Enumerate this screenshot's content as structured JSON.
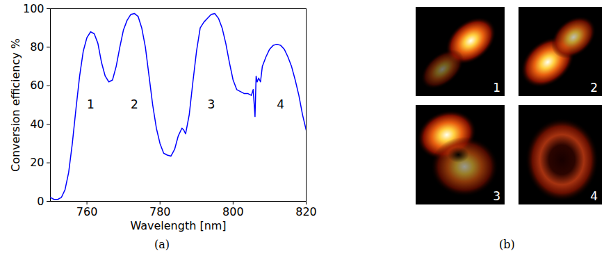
{
  "chart_data": {
    "type": "line",
    "xlabel": "Wavelength [nm]",
    "ylabel": "Conversion efficiency %",
    "color": "#0000ff",
    "xlim": [
      750,
      820
    ],
    "xticks": [
      760,
      780,
      800,
      820
    ],
    "ylim": [
      0,
      100
    ],
    "yticks": [
      0,
      20,
      40,
      60,
      80,
      100
    ],
    "grid": false,
    "x": [
      750,
      751,
      752,
      753,
      754,
      755,
      756,
      757,
      758,
      759,
      760,
      761,
      762,
      763,
      764,
      765,
      766,
      767,
      768,
      769,
      770,
      771,
      772,
      773,
      774,
      775,
      776,
      777,
      778,
      779,
      780,
      781,
      782,
      783,
      784,
      785,
      786,
      786.5,
      787,
      788,
      789,
      790,
      791,
      792,
      793,
      794,
      795,
      796,
      797,
      798,
      799,
      800,
      801,
      802,
      803,
      804,
      805,
      805.5,
      806,
      806.3,
      806.6,
      807,
      807.5,
      808,
      809,
      810,
      811,
      812,
      813,
      814,
      815,
      816,
      817,
      818,
      819,
      820
    ],
    "values": [
      2,
      1,
      1,
      2,
      6,
      15,
      30,
      48,
      65,
      78,
      85,
      88,
      87,
      82,
      72,
      65,
      62,
      63,
      70,
      80,
      89,
      94,
      97,
      97.5,
      96,
      90,
      80,
      65,
      50,
      38,
      30,
      25,
      24,
      23.5,
      27,
      34,
      38,
      37,
      35,
      45,
      62,
      78,
      90,
      93,
      95,
      97,
      97.5,
      95,
      90,
      82,
      72,
      63,
      58,
      57,
      56,
      56,
      55,
      58,
      44,
      65,
      62,
      64,
      62,
      70,
      75,
      79,
      81,
      81.5,
      81,
      79,
      75,
      70,
      63,
      55,
      45,
      37
    ],
    "annotations": [
      {
        "x": 761,
        "y": 50,
        "text": "1"
      },
      {
        "x": 773,
        "y": 50,
        "text": "2"
      },
      {
        "x": 794,
        "y": 50,
        "text": "3"
      },
      {
        "x": 813,
        "y": 50,
        "text": "4"
      }
    ]
  },
  "caption_a": "(a)",
  "panel_b": {
    "caption": "(b)",
    "images": [
      {
        "label": "1"
      },
      {
        "label": "2"
      },
      {
        "label": "3"
      },
      {
        "label": "4"
      }
    ]
  }
}
